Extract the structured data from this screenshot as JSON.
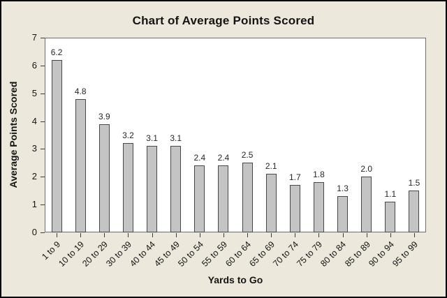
{
  "chart_data": {
    "type": "bar",
    "title": "Chart of Average Points Scored",
    "xlabel": "Yards to Go",
    "ylabel": "Average Points Scored",
    "categories": [
      "1 to 9",
      "10 to 19",
      "20 to 29",
      "30 to 39",
      "40 to 44",
      "45 to 49",
      "50 to 54",
      "55 to 59",
      "60 to 64",
      "65 to 69",
      "70 to 74",
      "75 to 79",
      "80 to 84",
      "85 to 89",
      "90 to 94",
      "95 to 99"
    ],
    "values": [
      6.2,
      4.8,
      3.9,
      3.2,
      3.1,
      3.1,
      2.4,
      2.4,
      2.5,
      2.1,
      1.7,
      1.8,
      1.3,
      2.0,
      1.1,
      1.5
    ],
    "value_labels": [
      "6.2",
      "4.8",
      "3.9",
      "3.2",
      "3.1",
      "3.1",
      "2.4",
      "2.4",
      "2.5",
      "2.1",
      "1.7",
      "1.8",
      "1.3",
      "2.0",
      "1.1",
      "1.5"
    ],
    "ylim": [
      0,
      7
    ],
    "yticks": [
      0,
      1,
      2,
      3,
      4,
      5,
      6,
      7
    ],
    "grid": "off",
    "legend": "none",
    "colors": {
      "figure_background": "#ECE9DC",
      "plot_background": "#FFFFFF",
      "plot_border": "#6E6E6E",
      "bar_fill": "#C4C4C4",
      "bar_border": "#474747",
      "tick_color": "#3C3C3C",
      "text_color": "#141414",
      "outer_border": "#000000"
    }
  }
}
